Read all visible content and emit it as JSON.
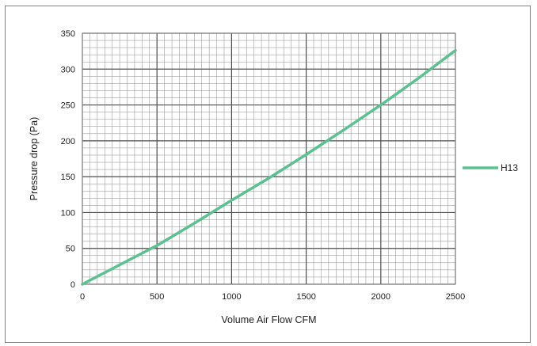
{
  "chart_data": {
    "type": "line",
    "title": "",
    "xlabel": "Volume Air Flow  CFM",
    "ylabel": "Pressure drop (Pa)",
    "xlim": [
      0,
      2500
    ],
    "ylim": [
      0,
      350
    ],
    "xticks": [
      0,
      500,
      1000,
      1500,
      2000,
      2500
    ],
    "yticks": [
      0,
      50,
      100,
      150,
      200,
      250,
      300,
      350
    ],
    "grid": true,
    "legend": "right",
    "series": [
      {
        "name": "H13",
        "color": "#5cc08f",
        "x": [
          0,
          250,
          500,
          750,
          1000,
          1250,
          1500,
          1750,
          2000,
          2250,
          2500
        ],
        "y": [
          0,
          27,
          54,
          85,
          117,
          148,
          181,
          215,
          250,
          287,
          326
        ]
      }
    ]
  }
}
